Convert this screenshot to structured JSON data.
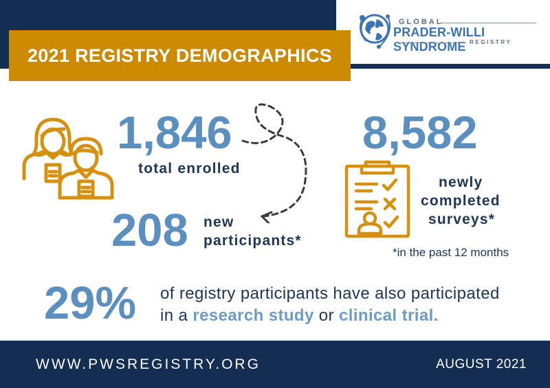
{
  "logo": {
    "line1": "GLOBAL",
    "line2": "PRADER-WILLI SYNDROME",
    "line3": "REGISTRY"
  },
  "banner": {
    "title": "2021 REGISTRY DEMOGRAPHICS"
  },
  "stats": {
    "total_enrolled": {
      "value": "1,846",
      "label": "total enrolled"
    },
    "new_participants": {
      "value": "208",
      "label_line1": "new",
      "label_line2": "participants*"
    },
    "surveys": {
      "value": "8,582",
      "label_line1": "newly",
      "label_line2": "completed",
      "label_line3": "surveys*"
    },
    "footnote": "*in the past 12 months"
  },
  "research": {
    "value": "29%",
    "text_part1": "of registry participants have also participated",
    "text_part2": "in a ",
    "highlight1": "research study",
    "text_part3": " or ",
    "highlight2": "clinical trial."
  },
  "footer": {
    "url": "WWW.PWSREGISTRY.ORG",
    "date": "AUGUST 2021"
  },
  "colors": {
    "navy": "#142d52",
    "gold": "#cc8a00",
    "stat_blue": "#5b8fc0",
    "icon_gold": "#d4900e"
  },
  "icons": [
    "people-icon",
    "clipboard-icon",
    "globe-logo-icon",
    "dashed-arrow-icon"
  ]
}
